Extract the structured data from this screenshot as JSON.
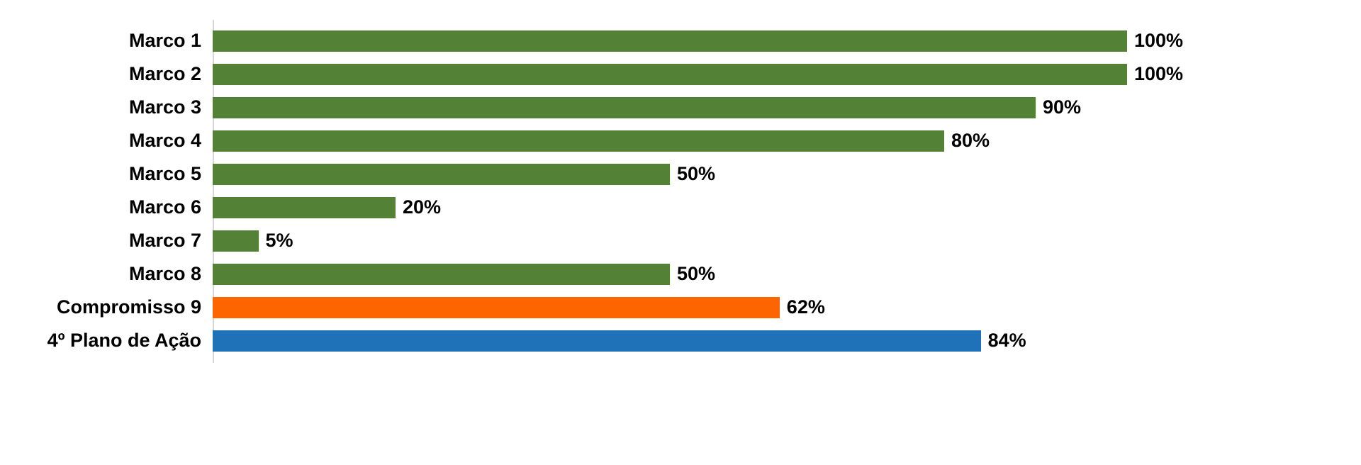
{
  "chart_data": {
    "type": "bar",
    "orientation": "horizontal",
    "title": "",
    "xlabel": "",
    "ylabel": "",
    "xlim": [
      0,
      100
    ],
    "grid": false,
    "legend": false,
    "value_label_position": "outside-end",
    "categories": [
      "Marco 1",
      "Marco 2",
      "Marco 3",
      "Marco 4",
      "Marco 5",
      "Marco 6",
      "Marco 7",
      "Marco 8",
      "Compromisso 9",
      "4º Plano de Ação"
    ],
    "values": [
      100,
      100,
      90,
      80,
      50,
      20,
      5,
      50,
      62,
      84
    ],
    "value_labels": [
      "100%",
      "100%",
      "90%",
      "80%",
      "50%",
      "20%",
      "5%",
      "50%",
      "62%",
      "84%"
    ],
    "bar_colors": [
      "#538135",
      "#538135",
      "#538135",
      "#538135",
      "#538135",
      "#538135",
      "#538135",
      "#538135",
      "#FC6500",
      "#1F72B8"
    ]
  },
  "colors": {
    "green": "#538135",
    "orange": "#FC6500",
    "blue": "#1F72B8",
    "axis_line": "#d6d6d6",
    "text": "#000000",
    "background": "#ffffff"
  }
}
